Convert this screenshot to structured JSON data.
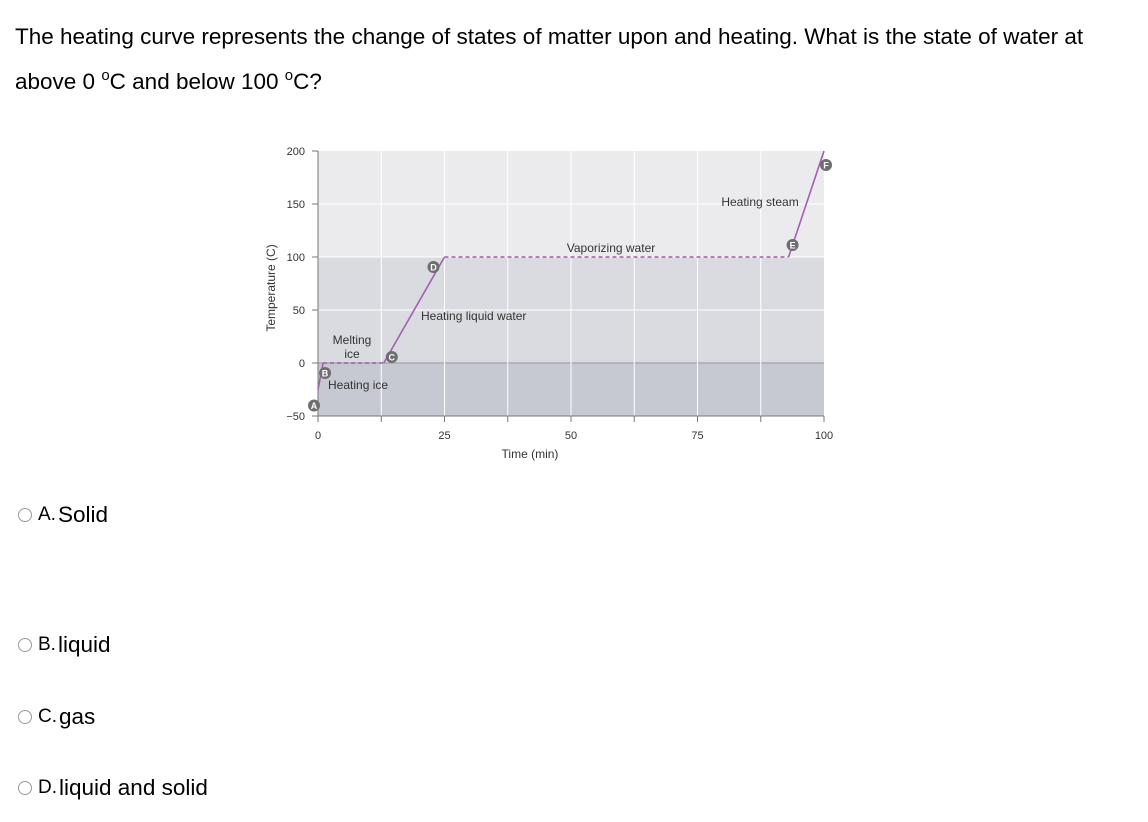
{
  "question": {
    "part1": "The heating curve represents the change of states of matter upon and heating. What is the state of water at above 0 ",
    "deg1": "o",
    "part2": "C and below 100 ",
    "deg2": "o",
    "part3": "C?"
  },
  "chart_data": {
    "type": "line",
    "xlabel": "Time (min)",
    "ylabel": "Temperature (C)",
    "xlim": [
      0,
      100
    ],
    "ylim": [
      -50,
      200
    ],
    "xticks": [
      0,
      25,
      50,
      75,
      100
    ],
    "yticks": [
      200,
      150,
      100,
      50,
      0,
      -50
    ],
    "x_tick_labels": [
      "0",
      "25",
      "50",
      "75",
      "100"
    ],
    "y_tick_labels": [
      "200",
      "150",
      "100",
      "50",
      "0",
      "−50"
    ],
    "bands": [
      {
        "from": 100,
        "to": 200,
        "color": "#ebebee"
      },
      {
        "from": 0,
        "to": 100,
        "color": "#d9dbe0"
      },
      {
        "from": -50,
        "to": 0,
        "color": "#c6c9d1"
      }
    ],
    "points": [
      {
        "label": "A",
        "x": 0,
        "y": -25
      },
      {
        "label": "B",
        "x": 1,
        "y": 0
      },
      {
        "label": "C",
        "x": 13,
        "y": 0
      },
      {
        "label": "D",
        "x": 25,
        "y": 100
      },
      {
        "label": "E",
        "x": 93,
        "y": 100
      },
      {
        "label": "F",
        "x": 100,
        "y": 200
      }
    ],
    "segments": [
      {
        "from": "A",
        "to": "B",
        "style": "solid",
        "label": ""
      },
      {
        "from": "B",
        "to": "C",
        "style": "dashed",
        "label": "Melting ice"
      },
      {
        "from": "C",
        "to": "D",
        "style": "solid",
        "label": "Heating liquid water"
      },
      {
        "from": "D",
        "to": "E",
        "style": "dashed",
        "label": "Vaporizing water"
      },
      {
        "from": "E",
        "to": "F",
        "style": "solid",
        "label": "Heating steam"
      }
    ],
    "annotations": {
      "heating_ice": "Heating ice",
      "melting_line1": "Melting",
      "melting_line2": "ice",
      "heating_liquid": "Heating liquid water",
      "vaporizing": "Vaporizing water",
      "heating_steam": "Heating steam"
    },
    "line_color": "#a060b0",
    "marker_color": "#6e6e70"
  },
  "options": [
    {
      "letter": "A.",
      "text": "Solid"
    },
    {
      "letter": "B.",
      "text": "liquid"
    },
    {
      "letter": "C.",
      "text": "gas"
    },
    {
      "letter": "D.",
      "text": "liquid and solid"
    }
  ]
}
